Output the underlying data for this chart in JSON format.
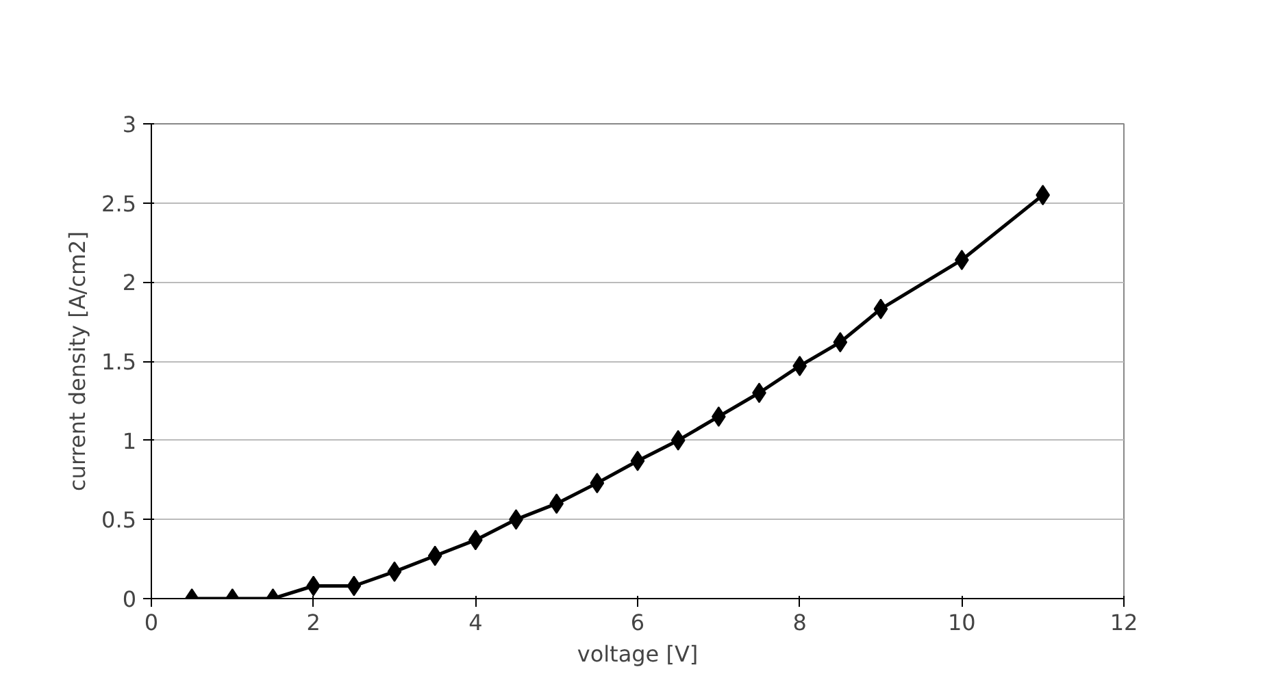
{
  "chart_data": {
    "type": "line",
    "xlabel": "voltage [V]",
    "ylabel": "current density [A/cm2]",
    "x": [
      0.5,
      1,
      1.5,
      2,
      2.5,
      3,
      3.5,
      4,
      4.5,
      5,
      5.5,
      6,
      6.5,
      7,
      7.5,
      8,
      8.5,
      9,
      10,
      11
    ],
    "series": [
      {
        "color": "#000000",
        "values": [
          0,
          0,
          0,
          0.08,
          0.08,
          0.17,
          0.27,
          0.37,
          0.5,
          0.6,
          0.73,
          0.87,
          1.0,
          1.15,
          1.3,
          1.47,
          1.62,
          1.83,
          2.14,
          2.55
        ]
      }
    ],
    "xlim": [
      0,
      12
    ],
    "ylim": [
      0,
      3
    ],
    "xticks": [
      0,
      2,
      4,
      6,
      8,
      10,
      12
    ],
    "yticks": [
      0,
      0.5,
      1,
      1.5,
      2,
      2.5,
      3
    ],
    "grid": "y",
    "marker": "diamond",
    "line_style": "solid"
  }
}
